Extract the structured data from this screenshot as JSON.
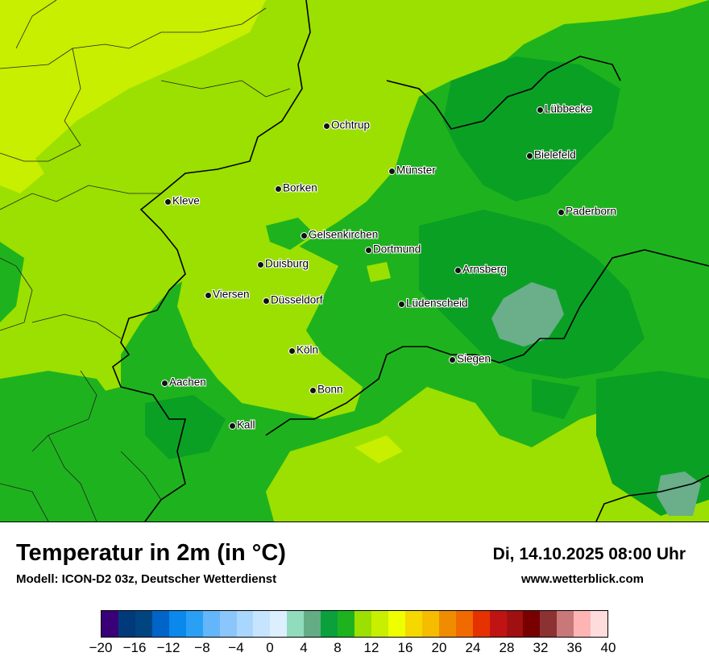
{
  "map": {
    "cities": [
      {
        "name": "Lübbecke"
      },
      {
        "name": "Ochtrup"
      },
      {
        "name": "Bielefeld"
      },
      {
        "name": "Münster"
      },
      {
        "name": "Borken"
      },
      {
        "name": "Kleve"
      },
      {
        "name": "Paderborn"
      },
      {
        "name": "Gelsenkirchen"
      },
      {
        "name": "Dortmund"
      },
      {
        "name": "Duisburg"
      },
      {
        "name": "Arnsberg"
      },
      {
        "name": "Viersen"
      },
      {
        "name": "Düsseldorf"
      },
      {
        "name": "Lüdenscheid"
      },
      {
        "name": "Köln"
      },
      {
        "name": "Siegen"
      },
      {
        "name": "Aachen"
      },
      {
        "name": "Bonn"
      },
      {
        "name": "Kall"
      }
    ],
    "colors": {
      "light_yellow_green": "#c8ee00",
      "yellow_green": "#9be000",
      "green": "#1eb31e",
      "dark_green": "#0aa024",
      "teal_green": "#6aae8a"
    }
  },
  "footer": {
    "title": "Temperatur in 2m (in °C)",
    "model": "Modell: ICON-D2 03z, Deutscher Wetterdienst",
    "datetime": "Di, 14.10.2025 08:00 Uhr",
    "website": "www.wetterblick.com"
  },
  "legend": {
    "unit": "°C",
    "min": -20,
    "max": 40,
    "colors": [
      "#3a0078",
      "#003a7a",
      "#00457f",
      "#0064c8",
      "#0a88ec",
      "#2aa0f5",
      "#64b6fb",
      "#8ac6fc",
      "#a8d6fd",
      "#c6e4fe",
      "#dcefff",
      "#90dcbc",
      "#64ac84",
      "#0aa03c",
      "#1eb31e",
      "#9be000",
      "#c8ee00",
      "#f0ff00",
      "#f5d800",
      "#f5bc00",
      "#f08c00",
      "#f06a00",
      "#e63200",
      "#c01414",
      "#a01010",
      "#780000",
      "#8c3232",
      "#c87878",
      "#ffb4b4",
      "#ffdcdc"
    ],
    "tick_labels": [
      "−20",
      "−16",
      "−12",
      "−8",
      "−4",
      "0",
      "4",
      "8",
      "12",
      "16",
      "20",
      "24",
      "28",
      "32",
      "36",
      "40"
    ]
  }
}
